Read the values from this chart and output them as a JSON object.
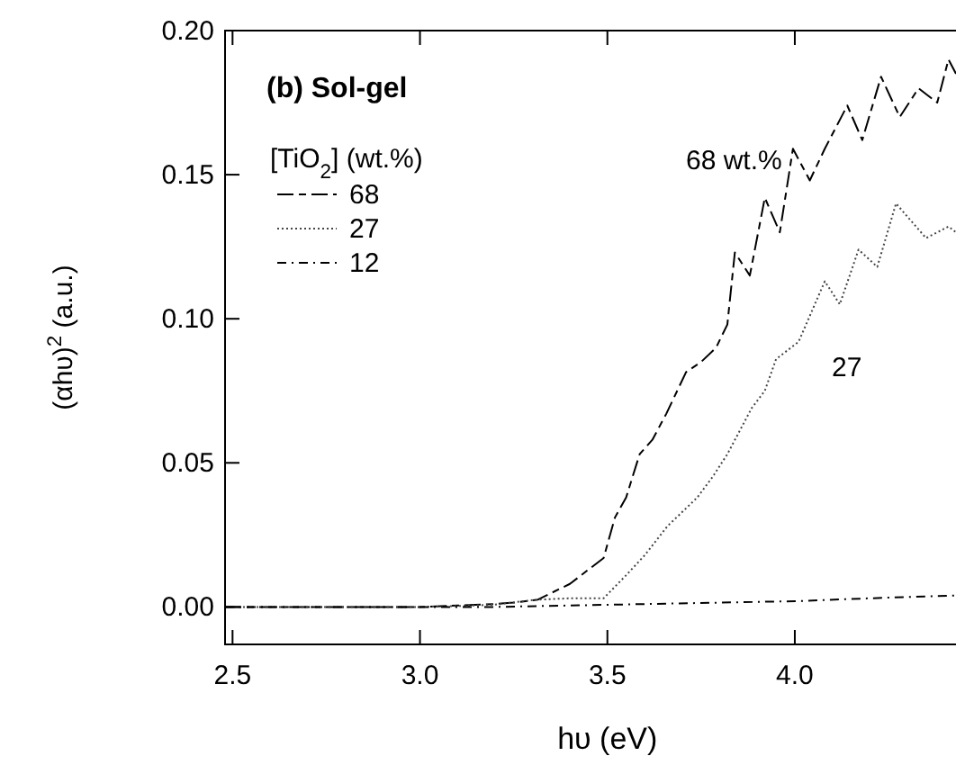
{
  "chart_data": {
    "type": "line",
    "title": "(b) Sol-gel",
    "xlabel": "hυ (eV)",
    "ylabel": "(αhυ)$^{2}$ (a.u.)",
    "legend_title": "[TiO$_{2}$] (wt.%)",
    "legend": "top left",
    "xlim": [
      2.48,
      4.43
    ],
    "ylim": [
      -0.013,
      0.2
    ],
    "xticks": [
      2.5,
      {
        "value": 3,
        "label": "3.0"
      },
      3.5,
      {
        "value": 4,
        "label": "4.0"
      }
    ],
    "yticks": [
      {
        "value": 0,
        "label": "0.00"
      },
      {
        "value": 0.05,
        "label": "0.05"
      },
      {
        "value": 0.1,
        "label": "0.10"
      },
      {
        "value": 0.15,
        "label": "0.15"
      },
      {
        "value": 0.2,
        "label": "0.20"
      }
    ],
    "grid": false,
    "annotations": [
      "68 wt.%",
      "27"
    ],
    "series": [
      {
        "name": "68",
        "color": "#000000",
        "line_style": "dashed",
        "x": [
          2.48,
          3.0,
          3.1,
          3.2,
          3.25,
          3.314,
          3.4,
          3.45,
          3.49,
          3.52,
          3.55,
          3.586,
          3.62,
          3.657,
          3.71,
          3.75,
          3.79,
          3.82,
          3.84,
          3.88,
          3.92,
          3.96,
          3.995,
          4.04,
          4.08,
          4.14,
          4.18,
          4.23,
          4.28,
          4.33,
          4.38,
          4.41,
          4.43
        ],
        "values": [
          0,
          0,
          0.0005,
          0.001,
          0.0015,
          0.0025,
          0.008,
          0.013,
          0.017,
          0.031,
          0.038,
          0.053,
          0.058,
          0.067,
          0.0815,
          0.085,
          0.09,
          0.098,
          0.123,
          0.115,
          0.142,
          0.13,
          0.159,
          0.148,
          0.159,
          0.174,
          0.162,
          0.184,
          0.17,
          0.18,
          0.175,
          0.19,
          0.185
        ]
      },
      {
        "name": "27",
        "color": "#444444",
        "line_style": "dotted",
        "x": [
          2.48,
          3.0,
          3.1,
          3.2,
          3.31,
          3.4,
          3.49,
          3.55,
          3.6,
          3.66,
          3.74,
          3.78,
          3.82,
          3.885,
          3.92,
          3.95,
          4.01,
          4.08,
          4.12,
          4.17,
          4.22,
          4.27,
          4.35,
          4.41,
          4.43
        ],
        "values": [
          0,
          0,
          0.0003,
          0.0008,
          0.0025,
          0.003,
          0.003,
          0.011,
          0.018,
          0.028,
          0.038,
          0.045,
          0.053,
          0.069,
          0.075,
          0.086,
          0.092,
          0.113,
          0.105,
          0.124,
          0.118,
          0.14,
          0.128,
          0.132,
          0.13
        ]
      },
      {
        "name": "12",
        "color": "#000000",
        "line_style": "dashdot",
        "x": [
          2.48,
          3.2,
          3.4,
          3.6,
          3.8,
          4.0,
          4.2,
          4.43
        ],
        "values": [
          0,
          0,
          0.0005,
          0.001,
          0.0015,
          0.002,
          0.003,
          0.004
        ]
      }
    ]
  }
}
